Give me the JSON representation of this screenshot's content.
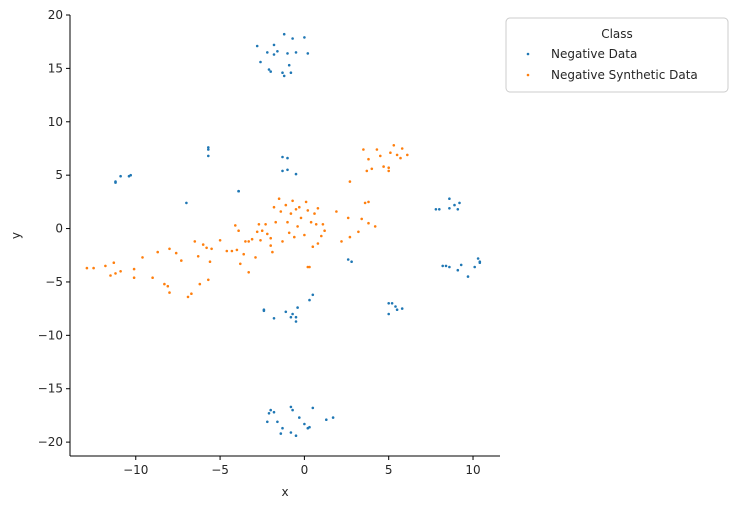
{
  "chart_data": {
    "type": "scatter",
    "xlabel": "x",
    "ylabel": "y",
    "xlim": [
      -13.9,
      11.6
    ],
    "ylim": [
      -21.3,
      20.0
    ],
    "xticks": [
      -10,
      -5,
      0,
      5,
      10
    ],
    "yticks": [
      -20,
      -15,
      -10,
      -5,
      0,
      5,
      10,
      15,
      20
    ],
    "grid": false,
    "legend": {
      "title": "Class",
      "placement": "outside-top-right"
    },
    "series": [
      {
        "name": "Negative Data",
        "color": "#1f77b4",
        "points": [
          [
            -1.2,
            18.2
          ],
          [
            -0.7,
            17.8
          ],
          [
            0.0,
            17.9
          ],
          [
            -2.8,
            17.1
          ],
          [
            -1.8,
            17.2
          ],
          [
            -2.2,
            16.5
          ],
          [
            -1.6,
            16.6
          ],
          [
            -1.8,
            16.3
          ],
          [
            -1.0,
            16.4
          ],
          [
            -0.5,
            16.5
          ],
          [
            0.2,
            16.4
          ],
          [
            -2.6,
            15.6
          ],
          [
            -0.9,
            15.3
          ],
          [
            -2.1,
            14.9
          ],
          [
            -2.0,
            14.7
          ],
          [
            -1.3,
            14.6
          ],
          [
            -0.8,
            14.6
          ],
          [
            -1.2,
            14.3
          ],
          [
            -5.7,
            7.6
          ],
          [
            -5.7,
            7.4
          ],
          [
            -5.7,
            6.8
          ],
          [
            -11.2,
            4.4
          ],
          [
            -11.2,
            4.3
          ],
          [
            -10.9,
            4.9
          ],
          [
            -10.4,
            4.9
          ],
          [
            -10.3,
            5.0
          ],
          [
            -7.0,
            2.4
          ],
          [
            -3.9,
            3.5
          ],
          [
            -3.9,
            3.5
          ],
          [
            -1.3,
            6.7
          ],
          [
            -1.0,
            6.6
          ],
          [
            -1.3,
            5.4
          ],
          [
            -1.0,
            5.5
          ],
          [
            -0.5,
            5.1
          ],
          [
            7.8,
            1.8
          ],
          [
            8.0,
            1.8
          ],
          [
            8.6,
            2.8
          ],
          [
            8.9,
            2.2
          ],
          [
            9.2,
            2.4
          ],
          [
            8.6,
            1.9
          ],
          [
            9.1,
            1.8
          ],
          [
            8.2,
            -3.5
          ],
          [
            8.4,
            -3.5
          ],
          [
            8.6,
            -3.6
          ],
          [
            9.1,
            -3.9
          ],
          [
            9.3,
            -3.4
          ],
          [
            9.7,
            -4.5
          ],
          [
            10.1,
            -3.6
          ],
          [
            10.3,
            -2.8
          ],
          [
            10.4,
            -3.1
          ],
          [
            10.4,
            -3.2
          ],
          [
            2.6,
            -2.9
          ],
          [
            2.8,
            -3.1
          ],
          [
            5.0,
            -7.0
          ],
          [
            5.2,
            -7.0
          ],
          [
            5.4,
            -7.3
          ],
          [
            5.5,
            -7.6
          ],
          [
            5.8,
            -7.5
          ],
          [
            5.0,
            -8.0
          ],
          [
            -2.4,
            -7.6
          ],
          [
            -2.4,
            -7.7
          ],
          [
            -1.8,
            -8.4
          ],
          [
            -1.1,
            -7.8
          ],
          [
            -0.7,
            -8.0
          ],
          [
            -0.4,
            -7.4
          ],
          [
            -0.8,
            -8.3
          ],
          [
            -0.5,
            -8.3
          ],
          [
            -0.5,
            -8.7
          ],
          [
            0.3,
            -6.7
          ],
          [
            0.5,
            -6.2
          ],
          [
            -2.0,
            -17.0
          ],
          [
            -1.8,
            -17.2
          ],
          [
            -2.1,
            -17.3
          ],
          [
            -2.2,
            -18.1
          ],
          [
            -1.6,
            -18.1
          ],
          [
            -1.3,
            -18.7
          ],
          [
            -1.4,
            -19.2
          ],
          [
            -0.8,
            -16.7
          ],
          [
            -0.7,
            -17.0
          ],
          [
            -0.3,
            -17.7
          ],
          [
            -0.8,
            -19.1
          ],
          [
            -0.5,
            -19.4
          ],
          [
            0.0,
            -18.3
          ],
          [
            0.2,
            -18.7
          ],
          [
            0.3,
            -18.6
          ],
          [
            0.5,
            -16.8
          ],
          [
            1.3,
            -17.9
          ],
          [
            1.7,
            -17.7
          ]
        ]
      },
      {
        "name": "Negative Synthetic Data",
        "color": "#ff7f0e",
        "points": [
          [
            -12.9,
            -3.7
          ],
          [
            -12.5,
            -3.7
          ],
          [
            -11.8,
            -3.5
          ],
          [
            -11.5,
            -4.4
          ],
          [
            -11.2,
            -4.2
          ],
          [
            -10.9,
            -4.0
          ],
          [
            -11.3,
            -3.2
          ],
          [
            -10.1,
            -3.8
          ],
          [
            -10.1,
            -4.6
          ],
          [
            -9.6,
            -2.7
          ],
          [
            -9.0,
            -4.6
          ],
          [
            -8.7,
            -2.2
          ],
          [
            -8.3,
            -5.2
          ],
          [
            -8.1,
            -5.4
          ],
          [
            -8.0,
            -1.9
          ],
          [
            -8.0,
            -6.0
          ],
          [
            -7.6,
            -2.3
          ],
          [
            -7.3,
            -3.0
          ],
          [
            -6.9,
            -6.4
          ],
          [
            -6.7,
            -6.1
          ],
          [
            -6.5,
            -1.2
          ],
          [
            -6.3,
            -2.6
          ],
          [
            -6.2,
            -5.2
          ],
          [
            -6.0,
            -1.5
          ],
          [
            -5.8,
            -1.8
          ],
          [
            -5.6,
            -3.1
          ],
          [
            -5.7,
            -4.8
          ],
          [
            -5.5,
            -1.9
          ],
          [
            -5.0,
            -1.1
          ],
          [
            -4.6,
            -2.1
          ],
          [
            -4.3,
            -2.1
          ],
          [
            -4.1,
            0.3
          ],
          [
            -4.0,
            -2.0
          ],
          [
            -3.9,
            -0.2
          ],
          [
            -3.8,
            -3.3
          ],
          [
            -3.6,
            -2.4
          ],
          [
            -3.5,
            -1.2
          ],
          [
            -3.3,
            -1.2
          ],
          [
            -3.3,
            -4.1
          ],
          [
            -3.1,
            -1.0
          ],
          [
            -2.9,
            -2.7
          ],
          [
            -2.8,
            -0.3
          ],
          [
            -2.7,
            0.4
          ],
          [
            -2.6,
            -1.1
          ],
          [
            -2.5,
            -0.2
          ],
          [
            -2.3,
            0.4
          ],
          [
            -2.2,
            -0.5
          ],
          [
            -2.0,
            -1.6
          ],
          [
            -2.0,
            -0.9
          ],
          [
            -1.9,
            -2.2
          ],
          [
            -1.8,
            2.0
          ],
          [
            -1.7,
            0.6
          ],
          [
            -1.5,
            2.8
          ],
          [
            -1.4,
            1.6
          ],
          [
            -1.3,
            -1.2
          ],
          [
            -1.1,
            2.2
          ],
          [
            -1.0,
            0.6
          ],
          [
            -0.9,
            -0.4
          ],
          [
            -0.8,
            1.4
          ],
          [
            -0.7,
            2.6
          ],
          [
            -0.6,
            -0.8
          ],
          [
            -0.5,
            1.8
          ],
          [
            -0.4,
            0.2
          ],
          [
            -0.3,
            2.0
          ],
          [
            -0.2,
            1.0
          ],
          [
            0.0,
            -0.6
          ],
          [
            0.1,
            2.5
          ],
          [
            0.2,
            1.7
          ],
          [
            0.2,
            -3.6
          ],
          [
            0.3,
            -3.6
          ],
          [
            0.4,
            0.6
          ],
          [
            0.5,
            -1.7
          ],
          [
            0.6,
            1.4
          ],
          [
            0.7,
            0.4
          ],
          [
            0.8,
            1.9
          ],
          [
            0.8,
            -1.4
          ],
          [
            1.0,
            -0.7
          ],
          [
            1.1,
            0.4
          ],
          [
            1.2,
            -0.2
          ],
          [
            1.9,
            1.6
          ],
          [
            2.2,
            -1.2
          ],
          [
            2.6,
            1.0
          ],
          [
            2.7,
            -0.8
          ],
          [
            2.7,
            4.4
          ],
          [
            3.2,
            -0.3
          ],
          [
            3.4,
            0.9
          ],
          [
            3.5,
            7.4
          ],
          [
            3.6,
            2.4
          ],
          [
            3.7,
            5.4
          ],
          [
            3.8,
            0.5
          ],
          [
            3.8,
            2.5
          ],
          [
            3.8,
            6.5
          ],
          [
            4.0,
            5.6
          ],
          [
            4.2,
            0.2
          ],
          [
            4.3,
            7.4
          ],
          [
            4.5,
            6.8
          ],
          [
            4.7,
            5.8
          ],
          [
            5.0,
            5.7
          ],
          [
            5.0,
            5.4
          ],
          [
            5.1,
            7.1
          ],
          [
            5.3,
            7.8
          ],
          [
            5.5,
            6.9
          ],
          [
            5.7,
            6.6
          ],
          [
            5.8,
            7.5
          ],
          [
            6.1,
            6.9
          ]
        ]
      }
    ]
  }
}
